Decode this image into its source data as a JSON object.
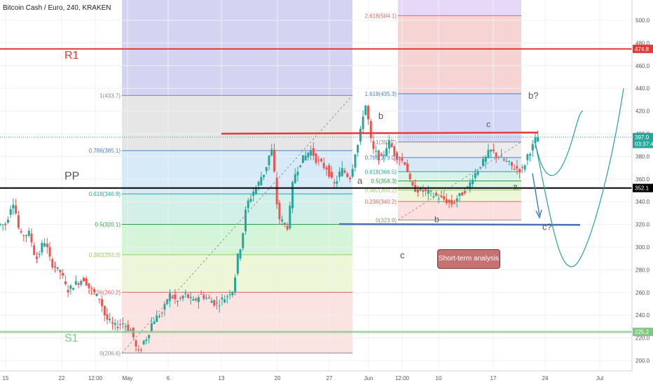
{
  "header": {
    "title": "Bitcoin Cash / Euro, 240, KRAKEN"
  },
  "note_button": "Short-term analysis",
  "chart_data": {
    "type": "candlestick",
    "title": "Bitcoin Cash / Euro, 240, KRAKEN",
    "ylim": [
      195,
      510
    ],
    "y_ticks": [
      "200.0",
      "220.0",
      "240.0",
      "260.0",
      "280.0",
      "300.0",
      "320.0",
      "340.0",
      "360.0",
      "380.0",
      "400.0",
      "420.0",
      "440.0",
      "460.0",
      "480.0",
      "500.0"
    ],
    "x_ticks": [
      "15",
      "22",
      "12:00",
      "May",
      "6",
      "13",
      "20",
      "27",
      "Jun",
      "12:00",
      "10",
      "17",
      "24",
      "Jul"
    ],
    "price_tags": [
      {
        "label": "474.8",
        "value": 474.8,
        "color": "#e53935"
      },
      {
        "label": "397.0",
        "value": 397.0,
        "color": "#26a69a"
      },
      {
        "label": "03:37:42",
        "value": 391.0,
        "color": "#26a69a"
      },
      {
        "label": "352.1",
        "value": 352.1,
        "color": "#000000"
      },
      {
        "label": "225.2",
        "value": 225.2,
        "color": "#81c784"
      }
    ],
    "pivots": [
      {
        "name": "R1",
        "value": 474.8,
        "color": "#e53935"
      },
      {
        "name": "PP",
        "value": 352.1,
        "color": "#000000"
      },
      {
        "name": "S1",
        "value": 225.2,
        "color": "#81c784"
      }
    ],
    "fib_primary": [
      {
        "label": "1(433.7)",
        "value": 433.7
      },
      {
        "label": "0.786(385.1)",
        "value": 385.1
      },
      {
        "label": "0.618(346.9)",
        "value": 346.9
      },
      {
        "label": "0.5(320.1)",
        "value": 320.1
      },
      {
        "label": "0.382(293.3)",
        "value": 293.3
      },
      {
        "label": "0.236(260.2)",
        "value": 260.2
      },
      {
        "label": "0(206.6)",
        "value": 206.6
      }
    ],
    "fib_secondary": [
      {
        "label": "2.618(504.1)",
        "value": 504.1
      },
      {
        "label": "1.618(435.3)",
        "value": 435.3
      },
      {
        "label": "1(392.7)",
        "value": 392.7
      },
      {
        "label": "0.786(379.0)",
        "value": 379.0
      },
      {
        "label": "0.618(366.5)",
        "value": 366.5
      },
      {
        "label": "0.5(358.3)",
        "value": 358.3
      },
      {
        "label": "0.382(350.2)",
        "value": 350.2
      },
      {
        "label": "0.236(340.2)",
        "value": 340.2
      },
      {
        "label": "0(323.9)",
        "value": 323.9
      }
    ],
    "wave_labels": [
      "a",
      "b",
      "c",
      "a",
      "b",
      "c",
      "b?",
      "c?"
    ],
    "series": [
      {
        "name": "BCH/EUR close (approx.)",
        "points": [
          [
            "Apr 13",
            320
          ],
          [
            "Apr 14",
            340
          ],
          [
            "Apr 15",
            310
          ],
          [
            "Apr 16",
            312
          ],
          [
            "Apr 17",
            290
          ],
          [
            "Apr 18",
            305
          ],
          [
            "Apr 19",
            285
          ],
          [
            "Apr 20",
            278
          ],
          [
            "Apr 21",
            262
          ],
          [
            "Apr 22",
            268
          ],
          [
            "Apr 23",
            272
          ],
          [
            "Apr 24",
            262
          ],
          [
            "Apr 25",
            255
          ],
          [
            "Apr 26",
            236
          ],
          [
            "Apr 27",
            230
          ],
          [
            "Apr 28",
            233
          ],
          [
            "Apr 29",
            227
          ],
          [
            "Apr 30",
            207
          ],
          [
            "May 1",
            220
          ],
          [
            "May 2",
            236
          ],
          [
            "May 3",
            242
          ],
          [
            "May 4",
            258
          ],
          [
            "May 5",
            252
          ],
          [
            "May 6",
            258
          ],
          [
            "May 7",
            252
          ],
          [
            "May 8",
            258
          ],
          [
            "May 9",
            254
          ],
          [
            "May 10",
            250
          ],
          [
            "May 11",
            255
          ],
          [
            "May 12",
            262
          ],
          [
            "May 13",
            300
          ],
          [
            "May 14",
            340
          ],
          [
            "May 15",
            352
          ],
          [
            "May 16",
            365
          ],
          [
            "May 17",
            385
          ],
          [
            "May 18",
            325
          ],
          [
            "May 19",
            318
          ],
          [
            "May 20",
            365
          ],
          [
            "May 21",
            378
          ],
          [
            "May 22",
            385
          ],
          [
            "May 23",
            375
          ],
          [
            "May 24",
            370
          ],
          [
            "May 25",
            355
          ],
          [
            "May 26",
            368
          ],
          [
            "May 27",
            362
          ],
          [
            "May 28",
            390
          ],
          [
            "May 29",
            425
          ],
          [
            "May 30",
            385
          ],
          [
            "May 31",
            378
          ],
          [
            "Jun 1",
            392
          ],
          [
            "Jun 2",
            380
          ],
          [
            "Jun 3",
            375
          ],
          [
            "Jun 4",
            352
          ],
          [
            "Jun 5",
            350
          ],
          [
            "Jun 6",
            348
          ],
          [
            "Jun 7",
            345
          ],
          [
            "Jun 8",
            342
          ],
          [
            "Jun 9",
            338
          ],
          [
            "Jun 10",
            345
          ],
          [
            "Jun 11",
            352
          ],
          [
            "Jun 12",
            365
          ],
          [
            "Jun 13",
            375
          ],
          [
            "Jun 14",
            385
          ],
          [
            "Jun 15",
            380
          ],
          [
            "Jun 16",
            375
          ],
          [
            "Jun 17",
            370
          ],
          [
            "Jun 18",
            368
          ],
          [
            "Jun 19",
            385
          ],
          [
            "Jun 20",
            397
          ]
        ]
      }
    ]
  }
}
